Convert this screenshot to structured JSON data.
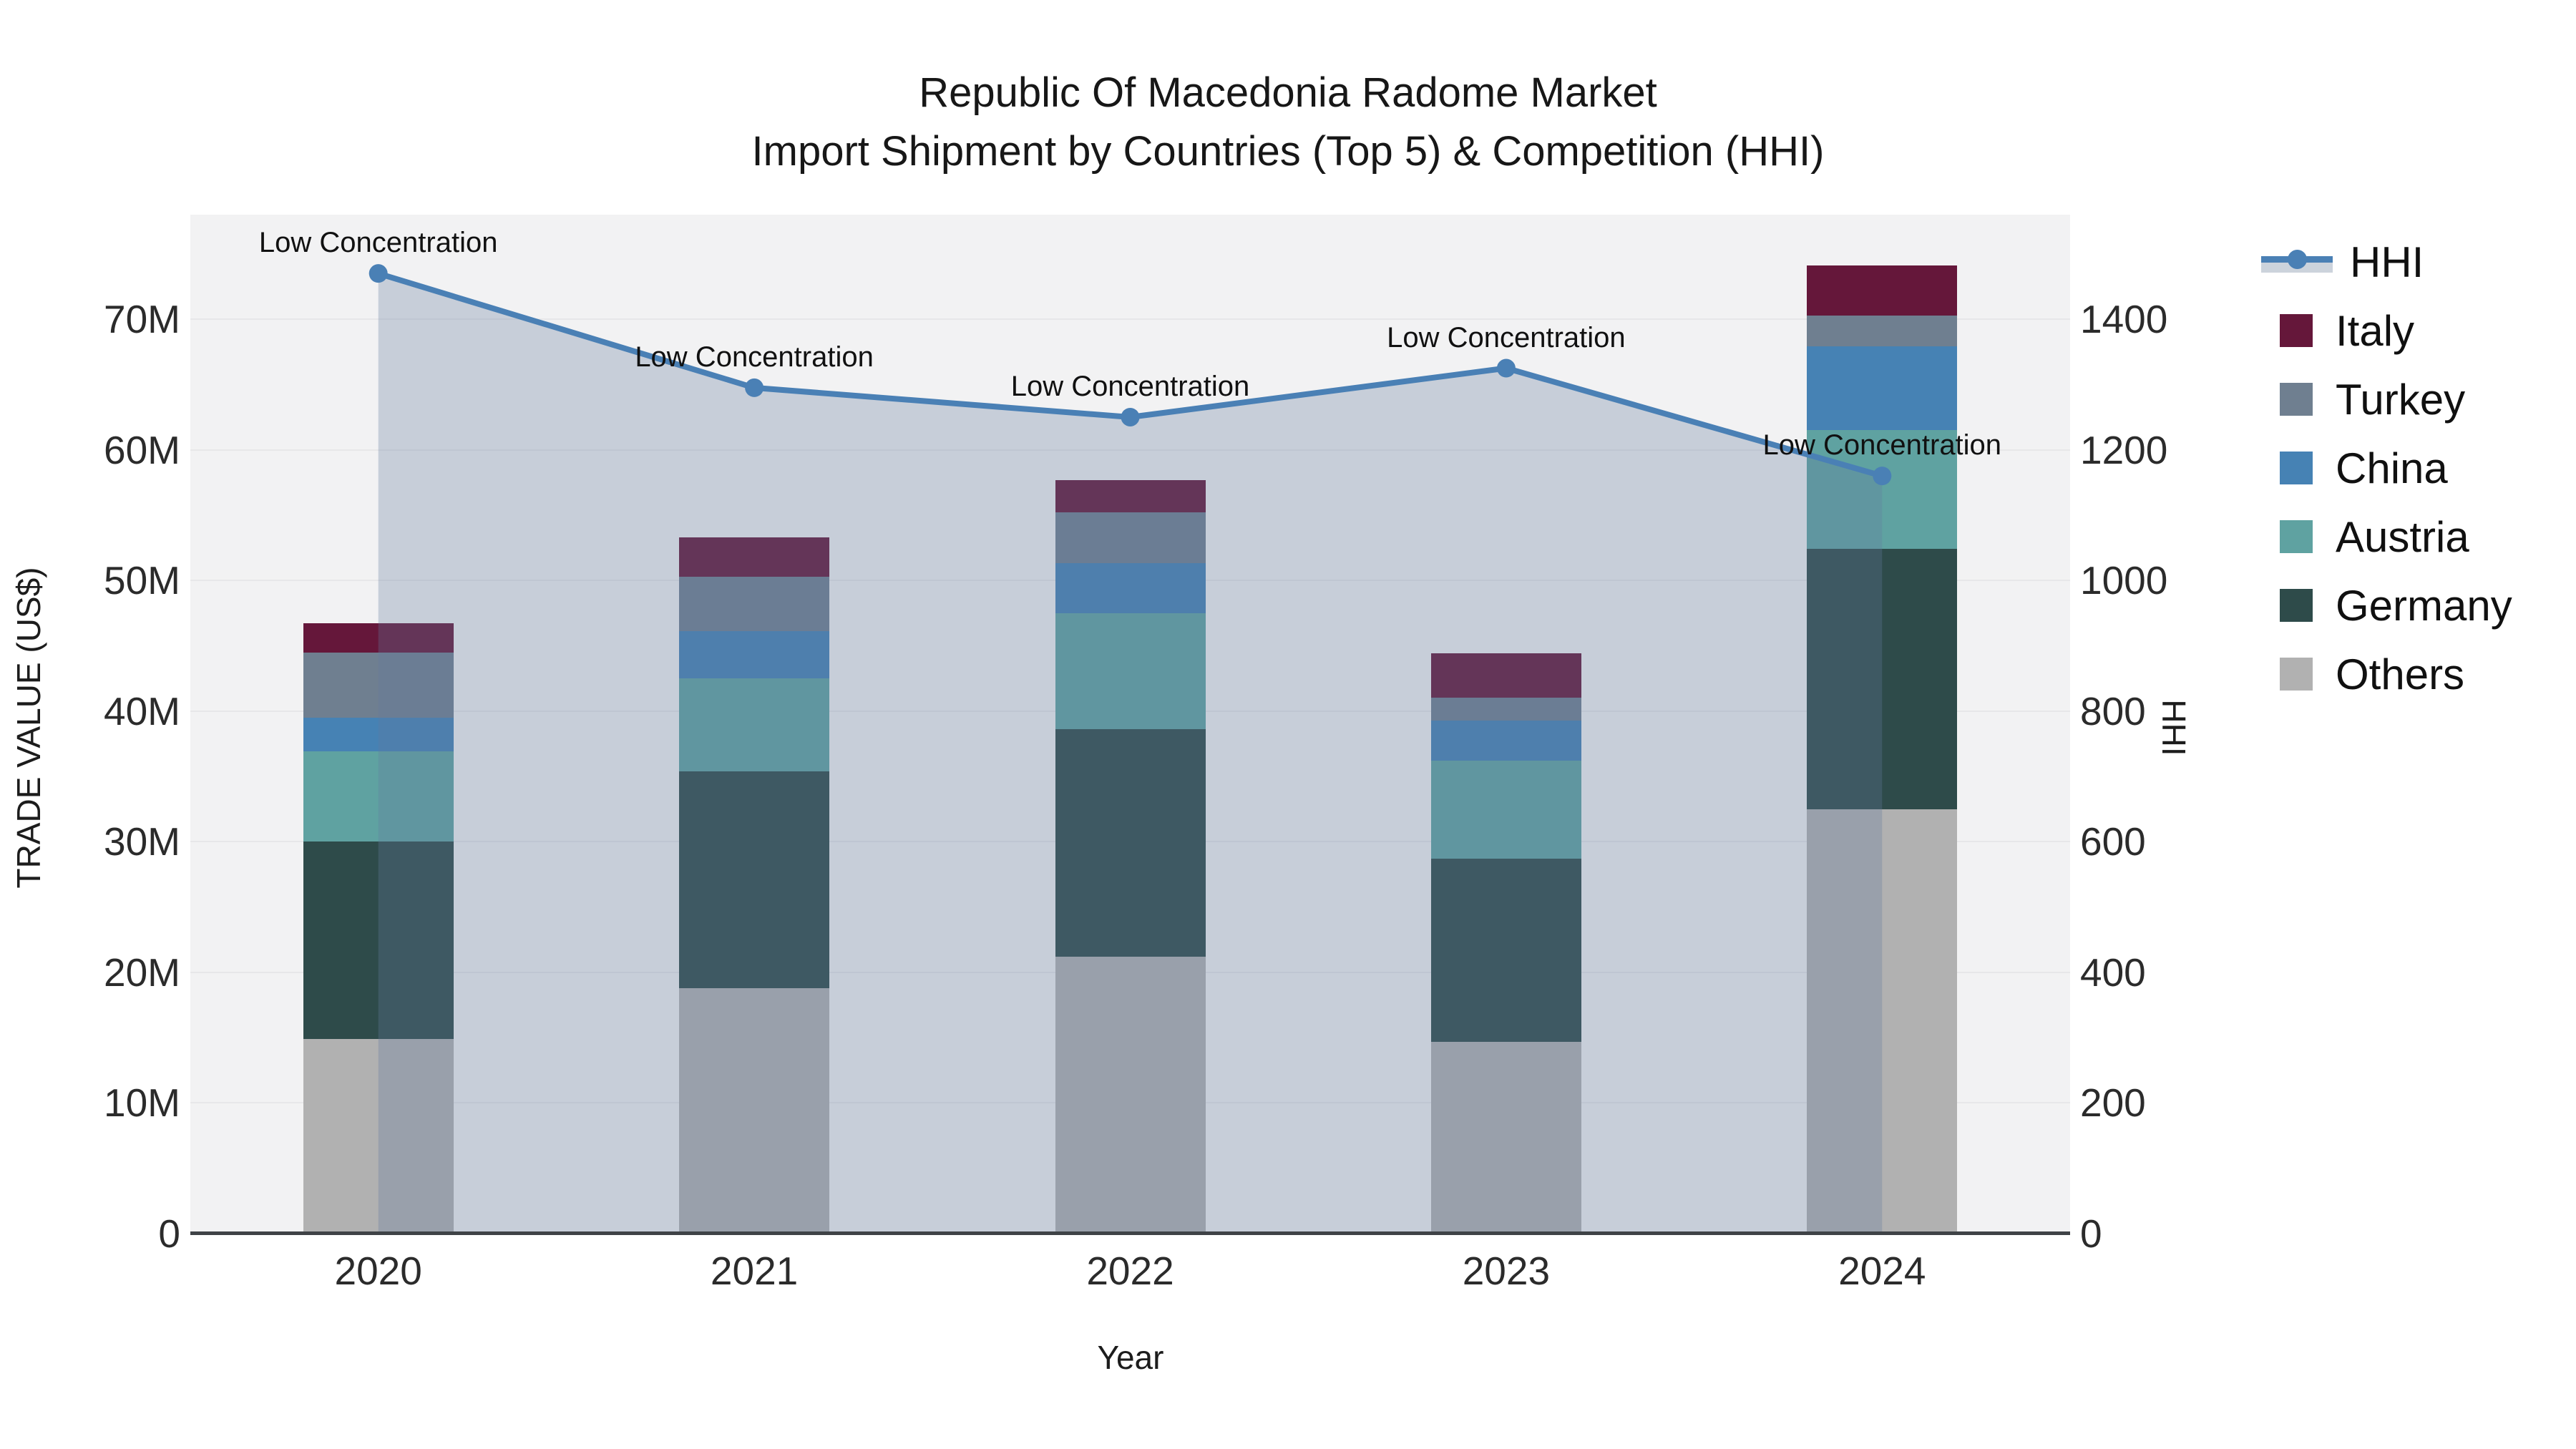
{
  "title": {
    "line1": "Republic Of Macedonia Radome Market",
    "line2": "Import Shipment by Countries (Top 5) & Competition (HHI)"
  },
  "axes": {
    "y_left_title": "TRADE VALUE (US$)",
    "y_right_title": "HHI",
    "x_title": "Year"
  },
  "legend": {
    "position": "right",
    "items": [
      {
        "label": "HHI",
        "type": "line",
        "color": "#4a80b5"
      },
      {
        "label": "Italy",
        "type": "square",
        "color": "#65173a"
      },
      {
        "label": "Turkey",
        "type": "square",
        "color": "#6f7f90"
      },
      {
        "label": "China",
        "type": "square",
        "color": "#4682b4"
      },
      {
        "label": "Austria",
        "type": "square",
        "color": "#5fa2a1"
      },
      {
        "label": "Germany",
        "type": "square",
        "color": "#2e4b4a"
      },
      {
        "label": "Others",
        "type": "square",
        "color": "#b1b1b1"
      }
    ]
  },
  "colors": {
    "plot_background": "#f2f2f3",
    "gridline": "#e7e7e9",
    "axis_line": "#3f4347",
    "hhi_line": "#4a80b5",
    "hhi_area_fill": "rgba(100,122,158,0.30)"
  },
  "chart_data": {
    "type": "combo: stacked-bar + line",
    "title_full": "Republic Of Macedonia Radome Market Import Shipment by Countries (Top 5) & Competition (HHI)",
    "categories": [
      "2020",
      "2021",
      "2022",
      "2023",
      "2024"
    ],
    "bar_value_unit": "million US$ (trade value, left axis)",
    "series": [
      {
        "name": "Others",
        "color": "#b1b1b1",
        "values": [
          14.9,
          18.8,
          21.2,
          14.7,
          32.5
        ]
      },
      {
        "name": "Germany",
        "color": "#2e4b4a",
        "values": [
          15.1,
          16.6,
          17.4,
          14.0,
          19.9
        ]
      },
      {
        "name": "Austria",
        "color": "#5fa2a1",
        "values": [
          6.9,
          7.1,
          8.9,
          7.5,
          9.1
        ]
      },
      {
        "name": "China",
        "color": "#4682b4",
        "values": [
          2.6,
          3.6,
          3.8,
          3.1,
          6.4
        ]
      },
      {
        "name": "Turkey",
        "color": "#6f7f90",
        "values": [
          5.0,
          4.2,
          3.9,
          1.7,
          2.4
        ]
      },
      {
        "name": "Italy",
        "color": "#65173a",
        "values": [
          2.2,
          3.0,
          2.5,
          3.4,
          3.8
        ]
      }
    ],
    "bar_totals": [
      46.7,
      53.3,
      57.7,
      44.4,
      74.1
    ],
    "line_series": {
      "name": "HHI",
      "axis": "right",
      "color": "#4a80b5",
      "area_fill": "rgba(100,122,158,0.30)",
      "values": [
        1470,
        1295,
        1250,
        1325,
        1160
      ],
      "point_annotations": [
        "Low Concentration",
        "Low Concentration",
        "Low Concentration",
        "Low Concentration",
        "Low Concentration"
      ]
    },
    "xlabel": "Year",
    "ylabel_left": "TRADE VALUE (US$)",
    "ylabel_right": "HHI",
    "ylim_left": [
      0,
      78
    ],
    "ylim_right": [
      0,
      1560
    ],
    "yticks_left": {
      "values": [
        0,
        10,
        20,
        30,
        40,
        50,
        60,
        70
      ],
      "labels": [
        "0",
        "10M",
        "20M",
        "30M",
        "40M",
        "50M",
        "60M",
        "70M"
      ]
    },
    "yticks_right": {
      "values": [
        0,
        200,
        400,
        600,
        800,
        1000,
        1200,
        1400
      ],
      "labels": [
        "0",
        "200",
        "400",
        "600",
        "800",
        "1000",
        "1200",
        "1400"
      ]
    },
    "grid": true,
    "legend_position": "right",
    "stack_order_bottom_to_top": [
      "Others",
      "Germany",
      "Austria",
      "China",
      "Turkey",
      "Italy"
    ]
  }
}
